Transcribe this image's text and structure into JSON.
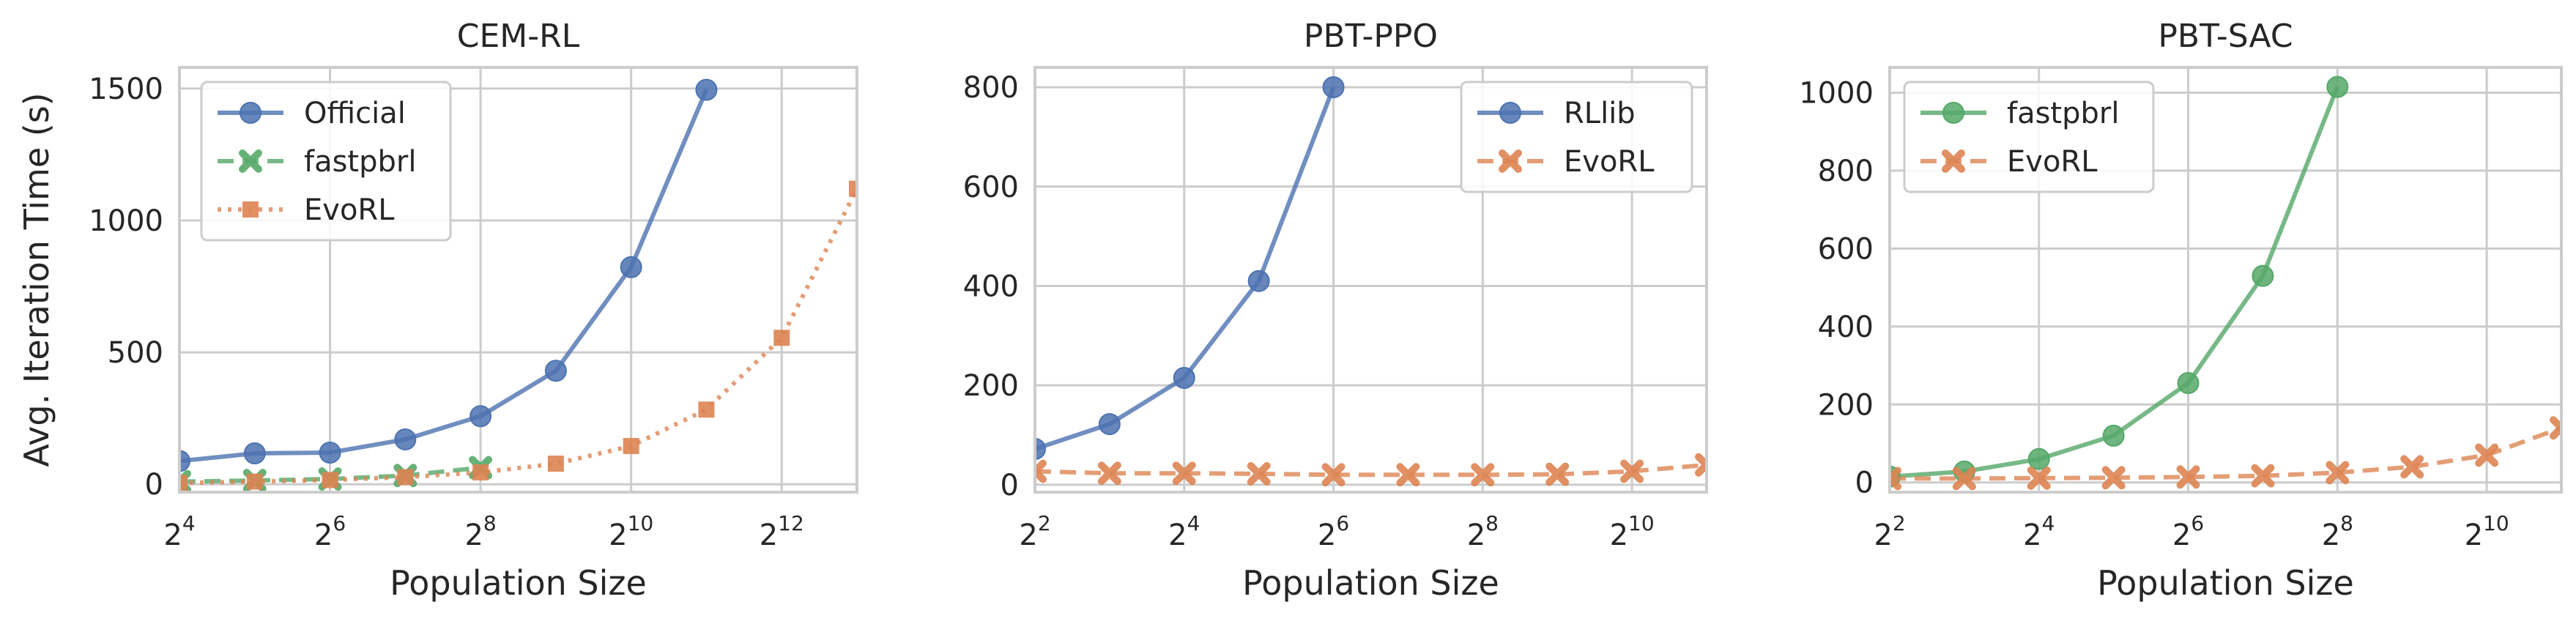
{
  "chart_data": [
    {
      "type": "line",
      "title": "CEM-RL",
      "xlabel": "Population Size",
      "ylabel": "Avg. Iteration Time (s)",
      "xscale": "log2",
      "xlim": [
        16,
        8192
      ],
      "ylim": [
        -30,
        1580
      ],
      "xticks": [
        {
          "base": "2",
          "exp": "4",
          "value": 16
        },
        {
          "base": "2",
          "exp": "6",
          "value": 64
        },
        {
          "base": "2",
          "exp": "8",
          "value": 256
        },
        {
          "base": "2",
          "exp": "10",
          "value": 1024
        },
        {
          "base": "2",
          "exp": "12",
          "value": 4096
        }
      ],
      "yticks": [
        0,
        500,
        1000,
        1500
      ],
      "grid": true,
      "legend_position": "upper-left",
      "series": [
        {
          "name": "Official",
          "color": "#4c72b0",
          "linestyle": "solid",
          "marker": "circle",
          "x": [
            16,
            32,
            64,
            128,
            256,
            512,
            1024,
            2048
          ],
          "y": [
            88,
            117,
            120,
            170,
            258,
            430,
            823,
            1495
          ]
        },
        {
          "name": "fastpbrl",
          "color": "#55a868",
          "linestyle": "dashed",
          "marker": "x",
          "x": [
            16,
            32,
            64,
            128,
            256
          ],
          "y": [
            10,
            14,
            20,
            33,
            63
          ]
        },
        {
          "name": "EvoRL",
          "color": "#dd8452",
          "linestyle": "dotted",
          "marker": "square",
          "x": [
            16,
            32,
            64,
            128,
            256,
            512,
            1024,
            2048,
            4096,
            8192
          ],
          "y": [
            5,
            10,
            16,
            27,
            45,
            78,
            145,
            283,
            555,
            1120
          ]
        }
      ]
    },
    {
      "type": "line",
      "title": "PBT-PPO",
      "xlabel": "Population Size",
      "ylabel": "",
      "xscale": "log2",
      "xlim": [
        4,
        2048
      ],
      "ylim": [
        -15,
        840
      ],
      "xticks": [
        {
          "base": "2",
          "exp": "2",
          "value": 4
        },
        {
          "base": "2",
          "exp": "4",
          "value": 16
        },
        {
          "base": "2",
          "exp": "6",
          "value": 64
        },
        {
          "base": "2",
          "exp": "8",
          "value": 256
        },
        {
          "base": "2",
          "exp": "10",
          "value": 1024
        }
      ],
      "yticks": [
        0,
        200,
        400,
        600,
        800
      ],
      "grid": true,
      "legend_position": "upper-right",
      "series": [
        {
          "name": "RLlib",
          "color": "#4c72b0",
          "linestyle": "solid",
          "marker": "circle",
          "x": [
            4,
            8,
            16,
            32,
            64
          ],
          "y": [
            72,
            122,
            215,
            410,
            800
          ]
        },
        {
          "name": "EvoRL",
          "color": "#dd8452",
          "linestyle": "dashed",
          "marker": "x",
          "x": [
            4,
            8,
            16,
            32,
            64,
            128,
            256,
            512,
            1024,
            2048
          ],
          "y": [
            27,
            23,
            23,
            22,
            20,
            20,
            20,
            21,
            27,
            40
          ]
        }
      ]
    },
    {
      "type": "line",
      "title": "PBT-SAC",
      "xlabel": "Population Size",
      "ylabel": "",
      "xscale": "log2",
      "xlim": [
        4,
        2048
      ],
      "ylim": [
        -25,
        1065
      ],
      "xticks": [
        {
          "base": "2",
          "exp": "2",
          "value": 4
        },
        {
          "base": "2",
          "exp": "4",
          "value": 16
        },
        {
          "base": "2",
          "exp": "6",
          "value": 64
        },
        {
          "base": "2",
          "exp": "8",
          "value": 256
        },
        {
          "base": "2",
          "exp": "10",
          "value": 1024
        }
      ],
      "yticks": [
        0,
        200,
        400,
        600,
        800,
        1000
      ],
      "grid": true,
      "legend_position": "upper-left",
      "series": [
        {
          "name": "fastpbrl",
          "color": "#55a868",
          "linestyle": "solid",
          "marker": "circle",
          "x": [
            4,
            8,
            16,
            32,
            64,
            128,
            256
          ],
          "y": [
            15,
            28,
            60,
            120,
            255,
            530,
            1015
          ]
        },
        {
          "name": "EvoRL",
          "color": "#dd8452",
          "linestyle": "dashed",
          "marker": "x",
          "x": [
            4,
            8,
            16,
            32,
            64,
            128,
            256,
            512,
            1024,
            2048
          ],
          "y": [
            10,
            10,
            11,
            12,
            14,
            17,
            25,
            40,
            70,
            140
          ]
        }
      ]
    }
  ]
}
